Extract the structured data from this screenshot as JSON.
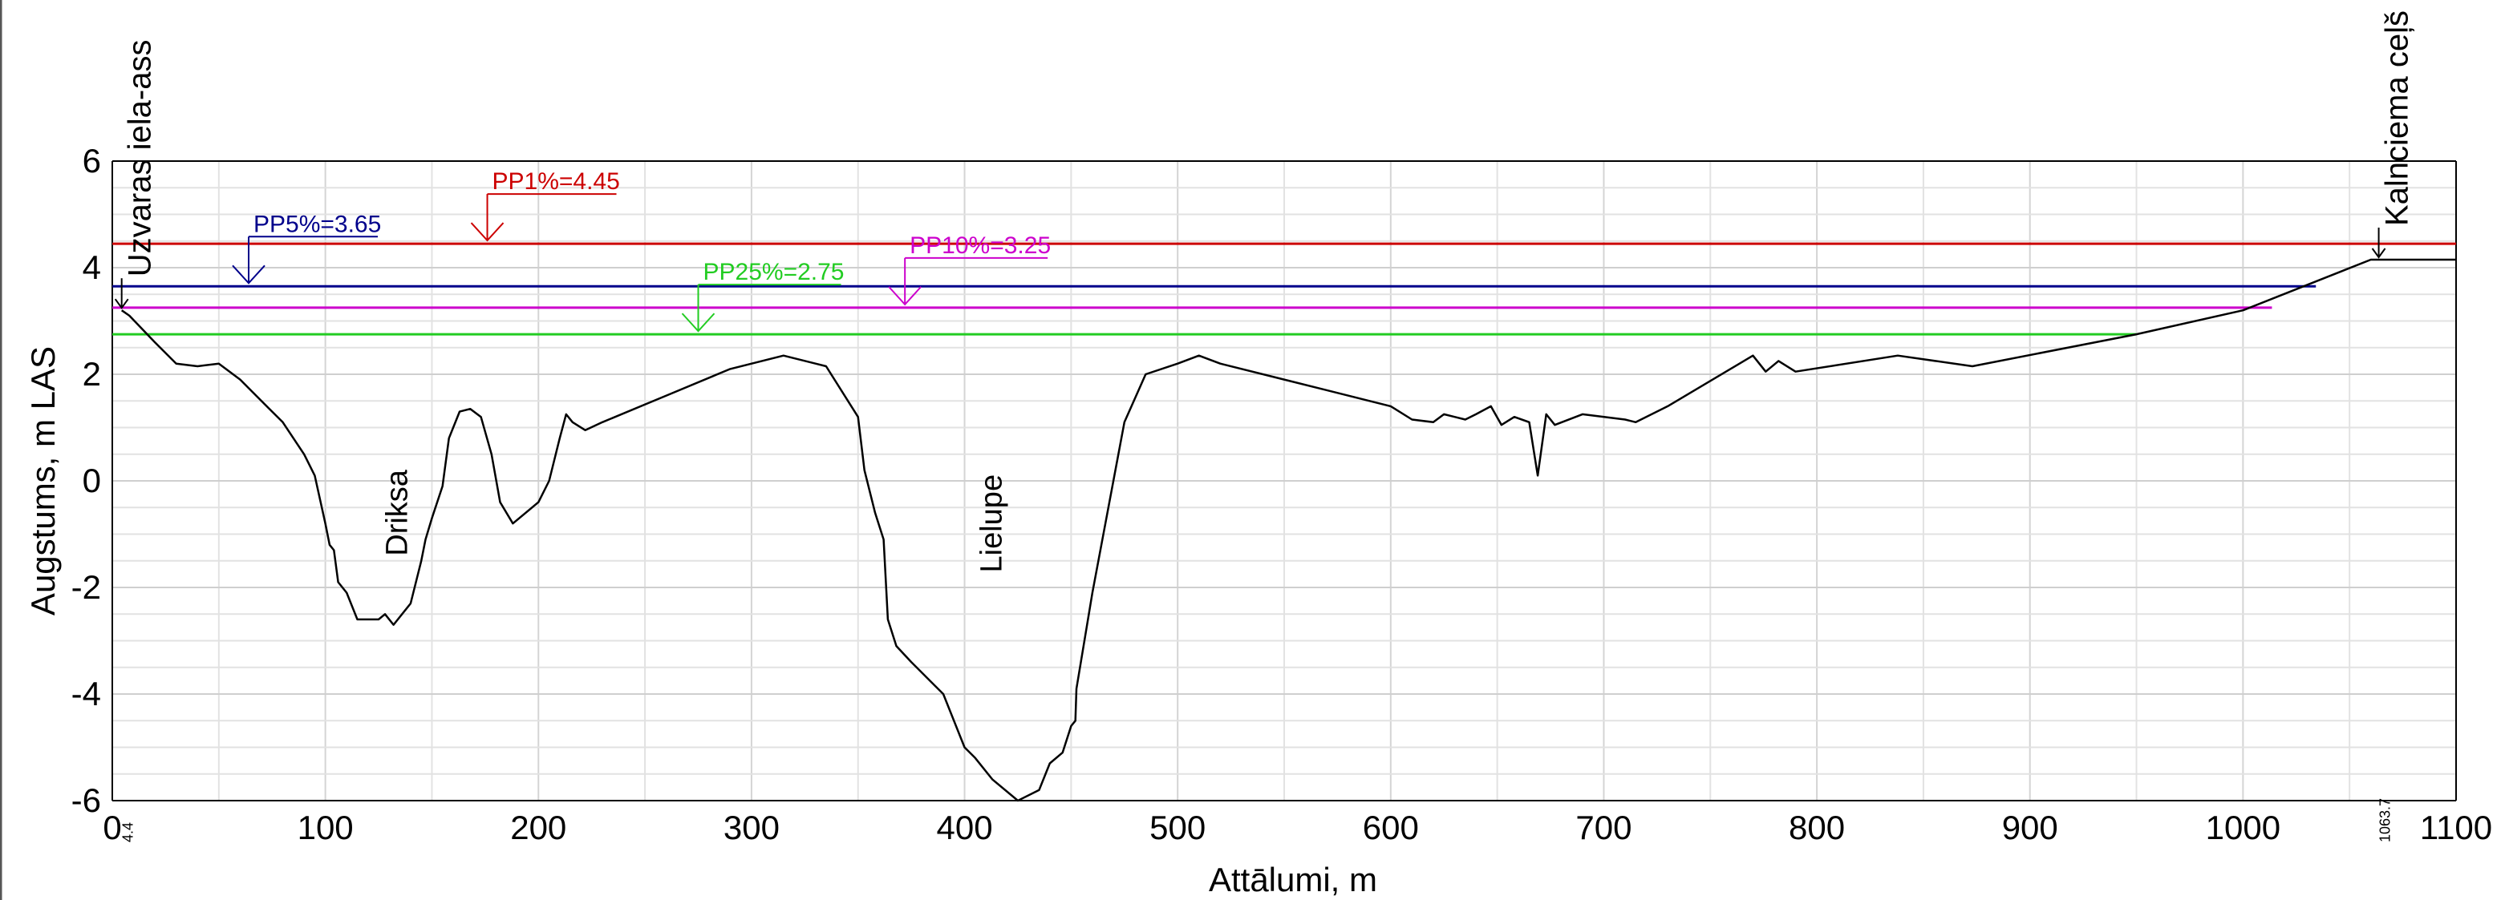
{
  "chart_data": {
    "type": "line",
    "title": "",
    "xlabel": "Attālumi, m",
    "ylabel": "Augstums, m LAS",
    "xlim": [
      0,
      1100
    ],
    "ylim": [
      -6,
      6
    ],
    "x_ticks": [
      0,
      100,
      200,
      300,
      400,
      500,
      600,
      700,
      800,
      900,
      1000,
      1100
    ],
    "y_ticks": [
      -6,
      -4,
      -2,
      0,
      2,
      4,
      6
    ],
    "grid": true,
    "series": [
      {
        "name": "",
        "color": "#000000",
        "points": [
          [
            4.4,
            3.2
          ],
          [
            8,
            3.1
          ],
          [
            20,
            2.6
          ],
          [
            30,
            2.2
          ],
          [
            40,
            2.15
          ],
          [
            50,
            2.2
          ],
          [
            60,
            1.9
          ],
          [
            70,
            1.5
          ],
          [
            80,
            1.1
          ],
          [
            90,
            0.5
          ],
          [
            95,
            0.1
          ],
          [
            100,
            -0.8
          ],
          [
            102,
            -1.2
          ],
          [
            104,
            -1.3
          ],
          [
            106,
            -1.9
          ],
          [
            110,
            -2.1
          ],
          [
            115,
            -2.6
          ],
          [
            125,
            -2.6
          ],
          [
            128,
            -2.5
          ],
          [
            132,
            -2.7
          ],
          [
            140,
            -2.3
          ],
          [
            145,
            -1.5
          ],
          [
            147,
            -1.1
          ],
          [
            150,
            -0.7
          ],
          [
            155,
            -0.1
          ],
          [
            158,
            0.8
          ],
          [
            163,
            1.3
          ],
          [
            168,
            1.35
          ],
          [
            173,
            1.2
          ],
          [
            178,
            0.5
          ],
          [
            182,
            -0.4
          ],
          [
            188,
            -0.8
          ],
          [
            200,
            -0.4
          ],
          [
            205,
            0.0
          ],
          [
            210,
            0.8
          ],
          [
            213,
            1.25
          ],
          [
            216,
            1.1
          ],
          [
            222,
            0.95
          ],
          [
            230,
            1.1
          ],
          [
            260,
            1.6
          ],
          [
            290,
            2.1
          ],
          [
            315,
            2.35
          ],
          [
            335,
            2.15
          ],
          [
            350,
            1.2
          ],
          [
            353,
            0.2
          ],
          [
            358,
            -0.6
          ],
          [
            362,
            -1.1
          ],
          [
            364,
            -2.6
          ],
          [
            368,
            -3.1
          ],
          [
            375,
            -3.4
          ],
          [
            385,
            -3.8
          ],
          [
            390,
            -4.0
          ],
          [
            400,
            -5.0
          ],
          [
            405,
            -5.2
          ],
          [
            413,
            -5.6
          ],
          [
            425,
            -6.0
          ],
          [
            435,
            -5.8
          ],
          [
            440,
            -5.3
          ],
          [
            446,
            -5.1
          ],
          [
            450,
            -4.6
          ],
          [
            452,
            -4.5
          ],
          [
            452.5,
            -3.9
          ],
          [
            460,
            -2.1
          ],
          [
            475,
            1.1
          ],
          [
            485,
            2.0
          ],
          [
            500,
            2.2
          ],
          [
            510,
            2.35
          ],
          [
            520,
            2.2
          ],
          [
            550,
            1.9
          ],
          [
            600,
            1.4
          ],
          [
            610,
            1.15
          ],
          [
            620,
            1.1
          ],
          [
            625,
            1.25
          ],
          [
            630,
            1.2
          ],
          [
            635,
            1.15
          ],
          [
            640,
            1.25
          ],
          [
            647,
            1.4
          ],
          [
            652,
            1.05
          ],
          [
            658,
            1.2
          ],
          [
            665,
            1.1
          ],
          [
            669,
            0.1
          ],
          [
            673,
            1.25
          ],
          [
            677,
            1.05
          ],
          [
            690,
            1.25
          ],
          [
            710,
            1.15
          ],
          [
            715,
            1.1
          ],
          [
            730,
            1.4
          ],
          [
            770,
            2.35
          ],
          [
            776,
            2.05
          ],
          [
            782,
            2.25
          ],
          [
            790,
            2.05
          ],
          [
            838,
            2.35
          ],
          [
            873,
            2.15
          ],
          [
            950,
            2.75
          ],
          [
            1000,
            3.2
          ],
          [
            1060,
            4.15
          ],
          [
            1100,
            4.15
          ]
        ]
      }
    ],
    "reference_lines": [
      {
        "label": "PP1%=4.45",
        "value": 4.45,
        "color": "#cc0000",
        "label_x": 176
      },
      {
        "label": "PP5%=3.65",
        "value": 3.65,
        "color": "#00008b",
        "label_x": 64
      },
      {
        "label": "PP10%=3.25",
        "value": 3.25,
        "color": "#cc00cc",
        "label_x": 372
      },
      {
        "label": "PP25%=2.75",
        "value": 2.75,
        "color": "#22cc22",
        "label_x": 275
      }
    ],
    "annotations": [
      {
        "text": "Uzvaras iela-ass",
        "x": 4.4,
        "y": 3.2,
        "station": "4.4"
      },
      {
        "text": "Kalnciema ceļš",
        "x": 1063.7,
        "y": 4.15,
        "station": "1063.7"
      },
      {
        "text": "Driksa",
        "x": 133,
        "y": -0.6
      },
      {
        "text": "Lielupe",
        "x": 412,
        "y": -0.8
      }
    ]
  }
}
